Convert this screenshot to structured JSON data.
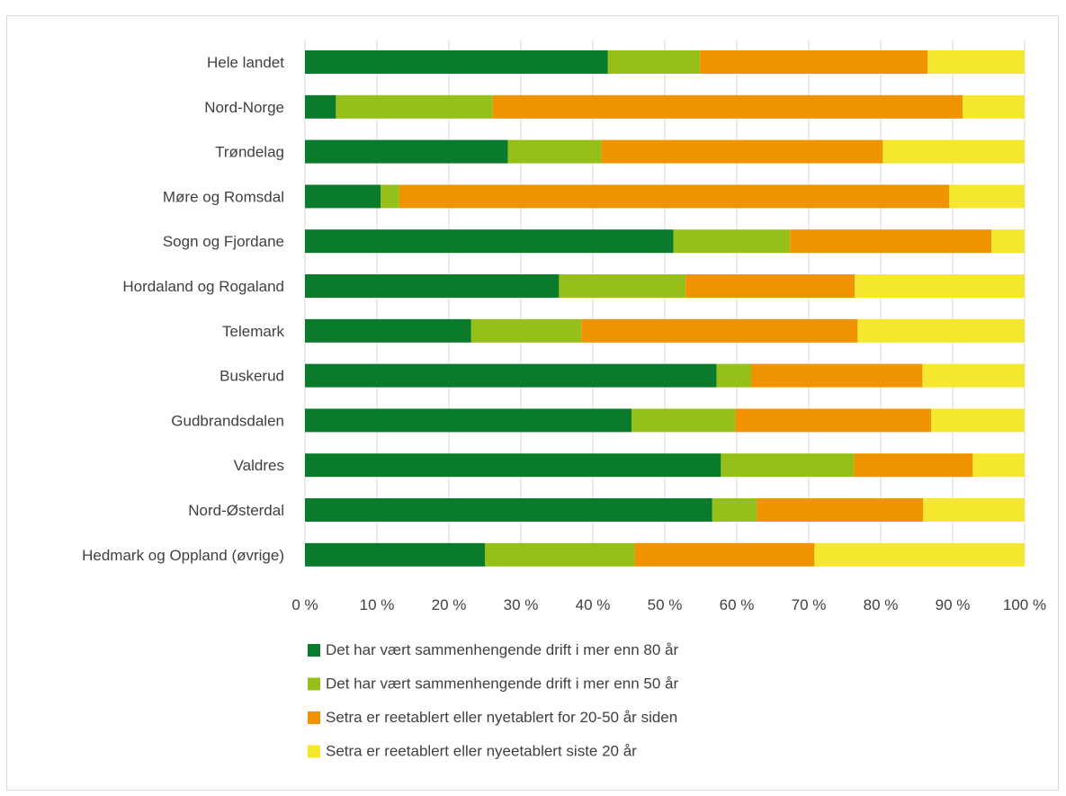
{
  "chart_data": {
    "type": "bar",
    "orientation": "horizontal",
    "stacked": "percent",
    "title": "",
    "xlabel": "",
    "ylabel": "",
    "xlim": [
      0,
      100
    ],
    "x_ticks": [
      "0 %",
      "10 %",
      "20 %",
      "30 %",
      "40 %",
      "50 %",
      "60 %",
      "70 %",
      "80 %",
      "90 %",
      "100 %"
    ],
    "grid": "vertical",
    "legend_position": "bottom",
    "categories": [
      "Hele landet",
      "Nord-Norge",
      "Trøndelag",
      "Møre og Romsdal",
      "Sogn og Fjordane",
      "Hordaland og Rogaland",
      "Telemark",
      "Buskerud",
      "Gudbrandsdalen",
      "Valdres",
      "Nord-Østerdal",
      "Hedmark og Oppland (øvrige)"
    ],
    "series": [
      {
        "name": "Det har vært sammenhengende drift i mer enn 80 år",
        "color": "#0a7a2b",
        "values": [
          42.1,
          4.3,
          28.2,
          10.5,
          51.2,
          35.3,
          23.1,
          57.2,
          45.4,
          57.8,
          56.6,
          25.0
        ]
      },
      {
        "name": "Det har vært sammenhengende drift i mer enn 50 år",
        "color": "#95c01a",
        "values": [
          12.8,
          21.8,
          13.0,
          2.6,
          16.2,
          17.6,
          15.3,
          4.8,
          14.4,
          18.5,
          6.2,
          20.8
        ]
      },
      {
        "name": "Setra er reetablert eller nyetablert for 20-50 år siden",
        "color": "#f09300",
        "values": [
          31.6,
          65.3,
          39.1,
          76.4,
          28.0,
          23.5,
          38.4,
          23.8,
          27.2,
          16.5,
          23.1,
          25.0
        ]
      },
      {
        "name": "Setra er reetablert eller nyeetablert siste 20 år",
        "color": "#f5e72e",
        "values": [
          13.5,
          8.6,
          19.7,
          10.5,
          4.6,
          23.6,
          23.2,
          14.2,
          13.0,
          7.2,
          14.1,
          29.2
        ]
      }
    ]
  }
}
